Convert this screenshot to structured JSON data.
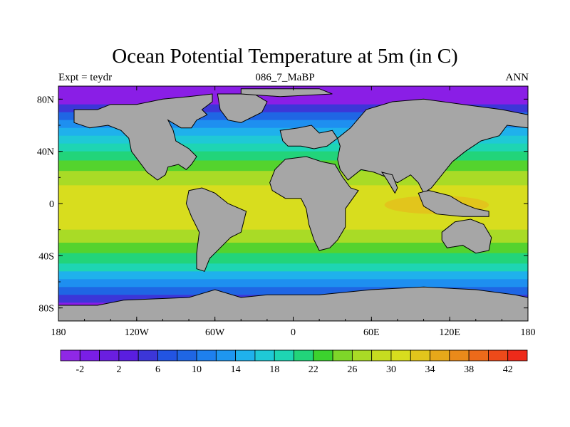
{
  "title": "Ocean Potential Temperature at 5m (in C)",
  "subtitle_left": "Expt = teydr",
  "subtitle_center": "086_7_MaBP",
  "subtitle_right": "ANN",
  "map": {
    "lon_range": [
      -180,
      180
    ],
    "lat_range": [
      -90,
      90
    ],
    "x_ticks": [
      {
        "value": -180,
        "label": "180"
      },
      {
        "value": -120,
        "label": "120W"
      },
      {
        "value": -60,
        "label": "60W"
      },
      {
        "value": 0,
        "label": "0"
      },
      {
        "value": 60,
        "label": "60E"
      },
      {
        "value": 120,
        "label": "120E"
      },
      {
        "value": 180,
        "label": "180"
      }
    ],
    "y_ticks": [
      {
        "value": 80,
        "label": "80N"
      },
      {
        "value": 40,
        "label": "40N"
      },
      {
        "value": 0,
        "label": "0"
      },
      {
        "value": -40,
        "label": "40S"
      },
      {
        "value": -80,
        "label": "80S"
      }
    ],
    "land_color": "#a6a6a6",
    "temperature_bands": [
      {
        "lat_from": 90,
        "lat_to": 76,
        "color": "#8a1ee6"
      },
      {
        "lat_from": 76,
        "lat_to": 70,
        "color": "#3c36d8"
      },
      {
        "lat_from": 70,
        "lat_to": 64,
        "color": "#1f66e4"
      },
      {
        "lat_from": 64,
        "lat_to": 58,
        "color": "#1e8ff0"
      },
      {
        "lat_from": 58,
        "lat_to": 52,
        "color": "#1fb1ec"
      },
      {
        "lat_from": 52,
        "lat_to": 46,
        "color": "#1fc9d6"
      },
      {
        "lat_from": 46,
        "lat_to": 40,
        "color": "#1ed5b3"
      },
      {
        "lat_from": 40,
        "lat_to": 33,
        "color": "#22d47a"
      },
      {
        "lat_from": 33,
        "lat_to": 25,
        "color": "#54d32e"
      },
      {
        "lat_from": 25,
        "lat_to": 14,
        "color": "#a9db26"
      },
      {
        "lat_from": 14,
        "lat_to": -20,
        "color": "#d8dd1e"
      },
      {
        "lat_from": -20,
        "lat_to": -30,
        "color": "#a9db26"
      },
      {
        "lat_from": -30,
        "lat_to": -38,
        "color": "#54d32e"
      },
      {
        "lat_from": -38,
        "lat_to": -46,
        "color": "#22d47a"
      },
      {
        "lat_from": -46,
        "lat_to": -52,
        "color": "#1ed5b3"
      },
      {
        "lat_from": -52,
        "lat_to": -58,
        "color": "#1fb1ec"
      },
      {
        "lat_from": -58,
        "lat_to": -64,
        "color": "#1e8ff0"
      },
      {
        "lat_from": -64,
        "lat_to": -70,
        "color": "#1f66e4"
      },
      {
        "lat_from": -70,
        "lat_to": -76,
        "color": "#3c36d8"
      },
      {
        "lat_from": -76,
        "lat_to": -90,
        "color": "#8a1ee6"
      }
    ],
    "warm_patches": [
      {
        "lon_from": 70,
        "lon_to": 150,
        "lat_from": 6,
        "lat_to": -8,
        "color": "#e2c51c"
      }
    ],
    "land_polygons": [
      {
        "name": "north-america",
        "points": [
          [
            -168,
            72
          ],
          [
            -150,
            72
          ],
          [
            -140,
            76
          ],
          [
            -120,
            76
          ],
          [
            -100,
            80
          ],
          [
            -80,
            82
          ],
          [
            -62,
            84
          ],
          [
            -62,
            78
          ],
          [
            -70,
            72
          ],
          [
            -66,
            68
          ],
          [
            -74,
            64
          ],
          [
            -78,
            58
          ],
          [
            -86,
            58
          ],
          [
            -96,
            64
          ],
          [
            -92,
            56
          ],
          [
            -90,
            48
          ],
          [
            -80,
            42
          ],
          [
            -74,
            36
          ],
          [
            -78,
            30
          ],
          [
            -82,
            26
          ],
          [
            -88,
            30
          ],
          [
            -96,
            28
          ],
          [
            -98,
            22
          ],
          [
            -104,
            18
          ],
          [
            -112,
            24
          ],
          [
            -118,
            32
          ],
          [
            -124,
            40
          ],
          [
            -126,
            50
          ],
          [
            -132,
            56
          ],
          [
            -142,
            60
          ],
          [
            -156,
            58
          ],
          [
            -168,
            62
          ]
        ]
      },
      {
        "name": "greenland",
        "points": [
          [
            -58,
            84
          ],
          [
            -30,
            84
          ],
          [
            -20,
            78
          ],
          [
            -24,
            70
          ],
          [
            -40,
            62
          ],
          [
            -50,
            64
          ],
          [
            -56,
            72
          ]
        ]
      },
      {
        "name": "europe",
        "points": [
          [
            -10,
            56
          ],
          [
            4,
            58
          ],
          [
            14,
            60
          ],
          [
            20,
            54
          ],
          [
            30,
            56
          ],
          [
            34,
            50
          ],
          [
            26,
            44
          ],
          [
            16,
            42
          ],
          [
            6,
            44
          ],
          [
            -4,
            44
          ],
          [
            -8,
            48
          ]
        ]
      },
      {
        "name": "asia",
        "points": [
          [
            34,
            50
          ],
          [
            44,
            58
          ],
          [
            56,
            72
          ],
          [
            76,
            78
          ],
          [
            100,
            80
          ],
          [
            130,
            76
          ],
          [
            160,
            72
          ],
          [
            180,
            68
          ],
          [
            180,
            58
          ],
          [
            164,
            60
          ],
          [
            158,
            52
          ],
          [
            144,
            48
          ],
          [
            132,
            40
          ],
          [
            122,
            32
          ],
          [
            114,
            22
          ],
          [
            106,
            12
          ],
          [
            100,
            8
          ],
          [
            96,
            16
          ],
          [
            90,
            22
          ],
          [
            80,
            16
          ],
          [
            72,
            20
          ],
          [
            62,
            24
          ],
          [
            52,
            26
          ],
          [
            42,
            18
          ],
          [
            36,
            26
          ],
          [
            34,
            34
          ],
          [
            36,
            44
          ]
        ]
      },
      {
        "name": "africa",
        "points": [
          [
            -18,
            16
          ],
          [
            -14,
            26
          ],
          [
            -6,
            34
          ],
          [
            10,
            36
          ],
          [
            22,
            32
          ],
          [
            32,
            30
          ],
          [
            38,
            20
          ],
          [
            44,
            12
          ],
          [
            50,
            10
          ],
          [
            40,
            -4
          ],
          [
            40,
            -18
          ],
          [
            34,
            -28
          ],
          [
            28,
            -34
          ],
          [
            20,
            -36
          ],
          [
            16,
            -28
          ],
          [
            12,
            -16
          ],
          [
            10,
            -4
          ],
          [
            6,
            4
          ],
          [
            -6,
            4
          ],
          [
            -16,
            10
          ]
        ]
      },
      {
        "name": "south-america",
        "points": [
          [
            -80,
            10
          ],
          [
            -70,
            12
          ],
          [
            -60,
            8
          ],
          [
            -50,
            0
          ],
          [
            -36,
            -6
          ],
          [
            -40,
            -22
          ],
          [
            -48,
            -26
          ],
          [
            -56,
            -34
          ],
          [
            -64,
            -42
          ],
          [
            -68,
            -52
          ],
          [
            -74,
            -50
          ],
          [
            -74,
            -38
          ],
          [
            -72,
            -22
          ],
          [
            -78,
            -10
          ],
          [
            -82,
            0
          ]
        ]
      },
      {
        "name": "india",
        "points": [
          [
            68,
            24
          ],
          [
            76,
            22
          ],
          [
            80,
            12
          ],
          [
            78,
            8
          ],
          [
            72,
            18
          ]
        ]
      },
      {
        "name": "southeast-asia",
        "points": [
          [
            96,
            8
          ],
          [
            104,
            10
          ],
          [
            120,
            6
          ],
          [
            130,
            0
          ],
          [
            140,
            -4
          ],
          [
            150,
            -6
          ],
          [
            150,
            -10
          ],
          [
            130,
            -10
          ],
          [
            110,
            -8
          ],
          [
            100,
            -2
          ]
        ]
      },
      {
        "name": "australia",
        "points": [
          [
            114,
            -22
          ],
          [
            124,
            -14
          ],
          [
            136,
            -12
          ],
          [
            146,
            -16
          ],
          [
            152,
            -26
          ],
          [
            150,
            -36
          ],
          [
            140,
            -38
          ],
          [
            130,
            -32
          ],
          [
            118,
            -34
          ],
          [
            114,
            -28
          ]
        ]
      },
      {
        "name": "antarctica",
        "points": [
          [
            -180,
            -78
          ],
          [
            -150,
            -78
          ],
          [
            -130,
            -74
          ],
          [
            -80,
            -72
          ],
          [
            -60,
            -66
          ],
          [
            -40,
            -72
          ],
          [
            -20,
            -70
          ],
          [
            20,
            -70
          ],
          [
            60,
            -66
          ],
          [
            100,
            -64
          ],
          [
            140,
            -66
          ],
          [
            170,
            -70
          ],
          [
            180,
            -72
          ],
          [
            180,
            -90
          ],
          [
            -180,
            -90
          ]
        ]
      },
      {
        "name": "arctic-island",
        "points": [
          [
            -40,
            88
          ],
          [
            20,
            88
          ],
          [
            30,
            84
          ],
          [
            -10,
            82
          ],
          [
            -40,
            84
          ]
        ]
      }
    ]
  },
  "colorbar": {
    "colors": [
      "#8f28e6",
      "#7a1ee6",
      "#6a1ee0",
      "#5a1ee0",
      "#3c36d8",
      "#2254e2",
      "#1f66e4",
      "#1e80ee",
      "#1e96f0",
      "#1fb1ec",
      "#1fc9d6",
      "#1ed5b3",
      "#22d47a",
      "#3cd22e",
      "#7ed629",
      "#a9db26",
      "#c6dc20",
      "#d8dd1e",
      "#e2c51c",
      "#e6a81a",
      "#ea8a1a",
      "#ec6a1a",
      "#ee4a1a",
      "#ee2a1a"
    ],
    "labels": [
      "-2",
      "2",
      "6",
      "10",
      "14",
      "18",
      "22",
      "26",
      "30",
      "34",
      "38",
      "42"
    ]
  }
}
